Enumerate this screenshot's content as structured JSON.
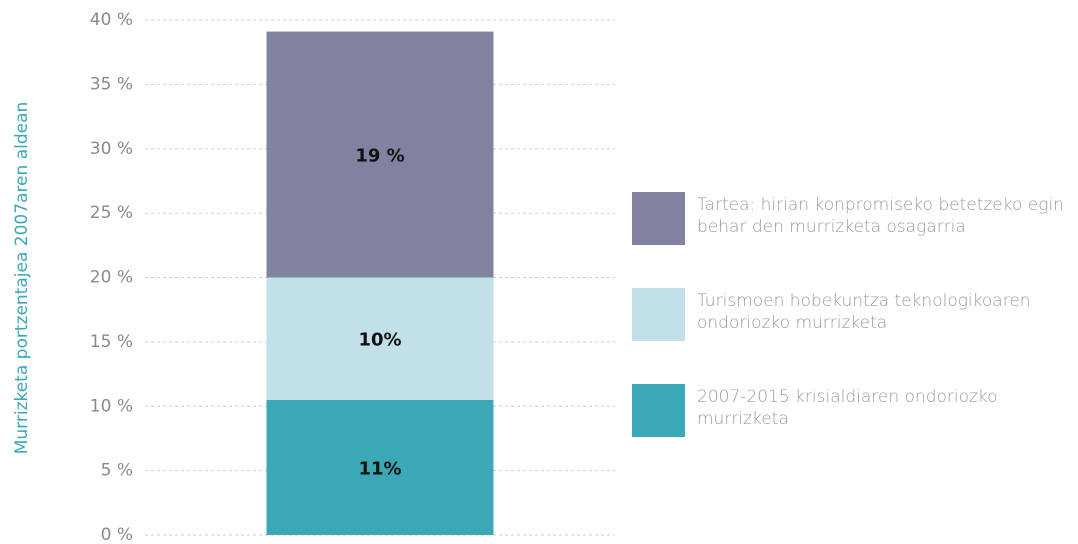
{
  "chart_data": {
    "type": "bar",
    "stacked": true,
    "y_label": "Murrizketa portzentajea 2007aren aldean",
    "categories": [
      null
    ],
    "series": [
      {
        "name": "2007-2015 krisialdiaren ondoriozko murrizketa",
        "color": "#3aa8b5",
        "values": [
          10.5
        ],
        "value_labels": [
          "11%"
        ]
      },
      {
        "name": "Turismoen hobekuntza teknologikoaren ondoriozko murrizketa",
        "color": "#c1e0e7",
        "values": [
          9.5
        ],
        "value_labels": [
          "10%"
        ]
      },
      {
        "name": "Tartea: hirian konpromiseko betetzeko egin behar den murrizketa osagarria",
        "color": "#8181a0",
        "values": [
          19.1
        ],
        "value_labels": [
          "19 %"
        ]
      }
    ],
    "ylim": [
      0,
      40
    ],
    "yticks": [
      {
        "value": 0,
        "label": "0 %"
      },
      {
        "value": 5,
        "label": "5 %"
      },
      {
        "value": 10,
        "label": "10 %"
      },
      {
        "value": 15,
        "label": "15 %"
      },
      {
        "value": 20,
        "label": "20 %"
      },
      {
        "value": 25,
        "label": "25 %"
      },
      {
        "value": 30,
        "label": "30 %"
      },
      {
        "value": 35,
        "label": "35 %"
      },
      {
        "value": 40,
        "label": "40 %"
      }
    ],
    "grid": true,
    "legend": "right"
  }
}
